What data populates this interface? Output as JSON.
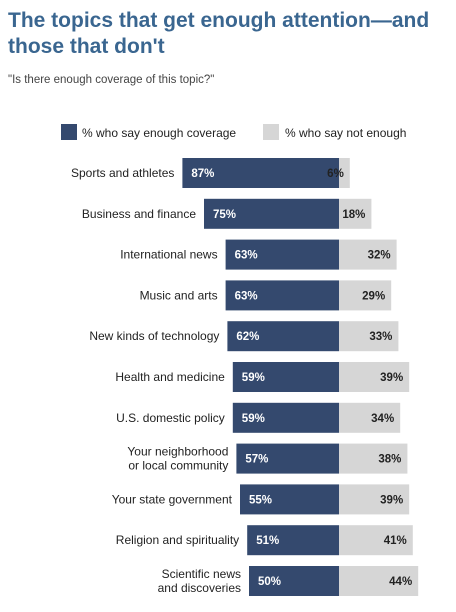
{
  "chart_data": {
    "type": "bar",
    "orientation": "horizontal",
    "stacked": "diverging",
    "title": "The topics that get enough attention—and those that don't",
    "subtitle": "\"Is there enough coverage of this topic?\"",
    "categories": [
      "Sports and athletes",
      "Business and finance",
      "International news",
      "Music and arts",
      "New kinds of technology",
      "Health and medicine",
      "U.S. domestic policy",
      "Your neighborhood or local community",
      "Your state government",
      "Religion and spirituality",
      "Scientific news and discoveries"
    ],
    "category_lines": [
      [
        "Sports and athletes"
      ],
      [
        "Business and finance"
      ],
      [
        "International news"
      ],
      [
        "Music and arts"
      ],
      [
        "New kinds of technology"
      ],
      [
        "Health and medicine"
      ],
      [
        "U.S. domestic policy"
      ],
      [
        "Your neighborhood",
        "or local community"
      ],
      [
        "Your state government"
      ],
      [
        "Religion and spirituality"
      ],
      [
        "Scientific news",
        "and discoveries"
      ]
    ],
    "series": [
      {
        "name": "% who say enough coverage",
        "color": "#34496e",
        "values": [
          87,
          75,
          63,
          63,
          62,
          59,
          59,
          57,
          55,
          51,
          50
        ]
      },
      {
        "name": "% who say not enough",
        "color": "#d6d6d6",
        "values": [
          6,
          18,
          32,
          29,
          33,
          39,
          34,
          38,
          39,
          41,
          44
        ]
      }
    ],
    "value_suffix": "%",
    "legend_position": "top",
    "grid": false,
    "xlim": [
      0,
      100
    ]
  }
}
